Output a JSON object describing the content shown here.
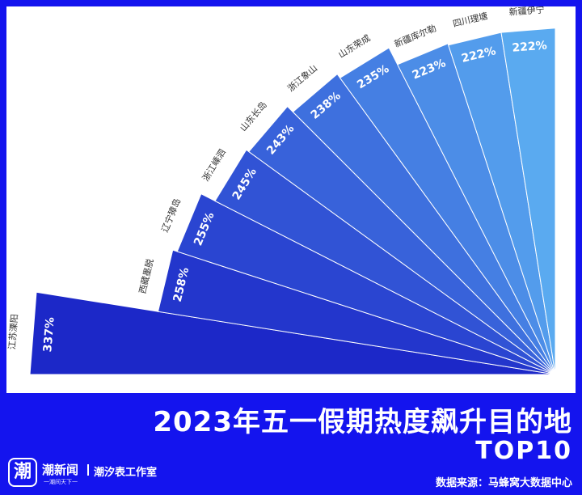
{
  "title": "2023年五一假期热度飙升目的地",
  "subtitle": "TOP10",
  "source": "数据来源：马蜂窝大数据中心",
  "brand": {
    "logo_glyph": "潮",
    "name": "潮新闻",
    "tagline": "一潮间天下一",
    "studio": "潮汐表工作室"
  },
  "colors": {
    "background": "#1414ee",
    "panel": "#ffffff",
    "label": "#333333",
    "wedge_start": "#1c28c8",
    "wedge_end": "#5aaaf0"
  },
  "chart_data": {
    "type": "bar",
    "orientation": "radial-fan",
    "categories": [
      "江苏溧阳",
      "西藏墨脱",
      "辽宁獐岛",
      "浙江嵊泗",
      "山东长岛",
      "浙江象山",
      "山东荣成",
      "新疆库尔勒",
      "四川理塘",
      "新疆伊宁"
    ],
    "values": [
      337,
      258,
      255,
      245,
      243,
      238,
      235,
      223,
      222,
      222
    ],
    "value_labels": [
      "337%",
      "258%",
      "255%",
      "245%",
      "243%",
      "238%",
      "235%",
      "223%",
      "222%",
      "222%"
    ],
    "unit": "%"
  }
}
